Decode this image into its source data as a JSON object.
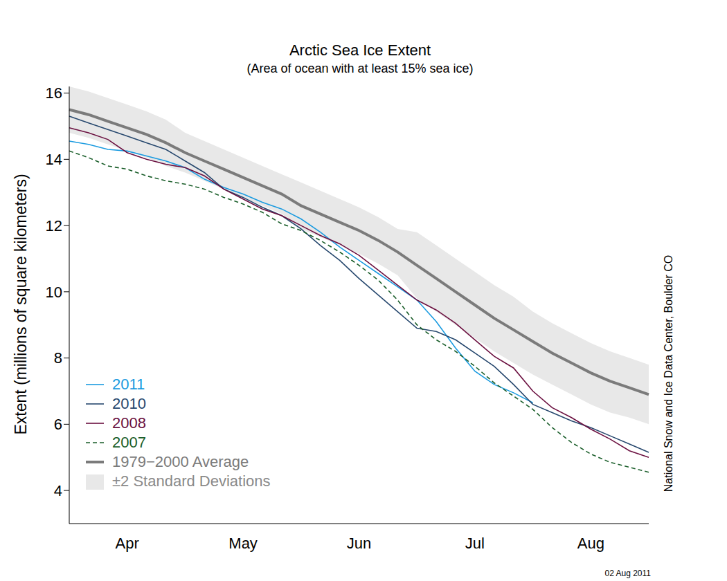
{
  "chart_data": {
    "type": "line",
    "title": "Arctic Sea Ice Extent",
    "subtitle": "(Area of ocean with at least 15% sea ice)",
    "y_label": "Extent (millions of square kilometers)",
    "annotations": [
      "National Snow and Ice Data Center, Boulder CO",
      "02 Aug 2011"
    ],
    "categories": [
      null,
      null,
      null,
      "Apr",
      null,
      null,
      null,
      null,
      null,
      "May",
      null,
      null,
      null,
      null,
      null,
      "Jun",
      null,
      null,
      null,
      null,
      null,
      "Jul",
      null,
      null,
      null,
      null,
      null,
      "Aug",
      null,
      null,
      null
    ],
    "series": [
      {
        "name": "2011",
        "color": "#1b9be0",
        "line_style": "solid",
        "values": [
          14.55,
          14.45,
          14.3,
          14.25,
          14.1,
          13.95,
          13.75,
          13.4,
          13.15,
          12.95,
          12.7,
          12.5,
          12.2,
          11.8,
          11.35,
          10.95,
          10.55,
          10.15,
          9.75,
          9.1,
          8.3,
          7.6,
          7.2,
          6.95,
          6.65,
          null,
          null,
          null,
          null,
          null,
          null
        ]
      },
      {
        "name": "2010",
        "color": "#27486e",
        "line_style": "solid",
        "values": [
          15.3,
          15.1,
          14.9,
          14.7,
          14.5,
          14.3,
          13.95,
          13.6,
          13.1,
          12.85,
          12.55,
          12.3,
          11.9,
          11.4,
          10.95,
          10.4,
          9.9,
          9.4,
          8.9,
          8.8,
          8.55,
          8.15,
          7.75,
          7.2,
          6.6,
          6.35,
          6.1,
          5.9,
          5.65,
          5.4,
          5.15
        ]
      },
      {
        "name": "2008",
        "color": "#6b1040",
        "line_style": "solid",
        "values": [
          14.95,
          14.8,
          14.6,
          14.2,
          14.0,
          13.85,
          13.75,
          13.5,
          13.1,
          12.8,
          12.5,
          12.3,
          12.0,
          11.7,
          11.45,
          11.1,
          10.65,
          10.2,
          9.75,
          9.45,
          9.05,
          8.55,
          8.05,
          7.7,
          7.0,
          6.5,
          6.2,
          5.85,
          5.55,
          5.2,
          5.0
        ]
      },
      {
        "name": "2007",
        "color": "#1a5e2a",
        "line_style": "dashed",
        "values": [
          14.25,
          14.05,
          13.8,
          13.7,
          13.5,
          13.35,
          13.25,
          13.1,
          12.85,
          12.65,
          12.4,
          12.05,
          11.85,
          11.55,
          11.2,
          10.8,
          10.35,
          9.75,
          9.0,
          8.55,
          8.2,
          7.75,
          7.25,
          6.85,
          6.45,
          5.9,
          5.45,
          5.1,
          4.85,
          4.7,
          4.55
        ]
      },
      {
        "name": "1979−2000 Average",
        "color": "#7b7b7b",
        "line_style": "thick",
        "values": [
          15.5,
          15.35,
          15.15,
          14.95,
          14.75,
          14.5,
          14.2,
          13.95,
          13.7,
          13.45,
          13.2,
          12.95,
          12.6,
          12.35,
          12.1,
          11.85,
          11.55,
          11.2,
          10.8,
          10.4,
          10.0,
          9.6,
          9.2,
          8.85,
          8.5,
          8.15,
          7.85,
          7.55,
          7.3,
          7.1,
          6.9
        ]
      }
    ],
    "band": {
      "name": "±2 Standard Deviations",
      "color": "#e8e8e8",
      "lower": [
        14.8,
        14.65,
        14.45,
        14.25,
        14.05,
        13.8,
        13.6,
        13.35,
        13.1,
        12.85,
        12.6,
        12.35,
        11.9,
        11.65,
        11.4,
        11.15,
        10.85,
        10.5,
        9.8,
        9.4,
        9.0,
        8.6,
        8.2,
        7.85,
        7.5,
        7.2,
        6.9,
        6.6,
        6.35,
        6.2,
        6.0
      ],
      "upper": [
        16.2,
        16.05,
        15.85,
        15.65,
        15.45,
        15.2,
        14.8,
        14.55,
        14.3,
        14.05,
        13.8,
        13.55,
        13.3,
        13.05,
        12.8,
        12.55,
        12.25,
        11.9,
        11.8,
        11.4,
        11.0,
        10.6,
        10.2,
        9.85,
        9.4,
        9.05,
        8.75,
        8.45,
        8.2,
        8.0,
        7.8
      ]
    },
    "ylim": [
      3,
      16.2
    ],
    "yticks": [
      4,
      6,
      8,
      10,
      12,
      14,
      16
    ],
    "grid": false,
    "legend": "lower left"
  }
}
